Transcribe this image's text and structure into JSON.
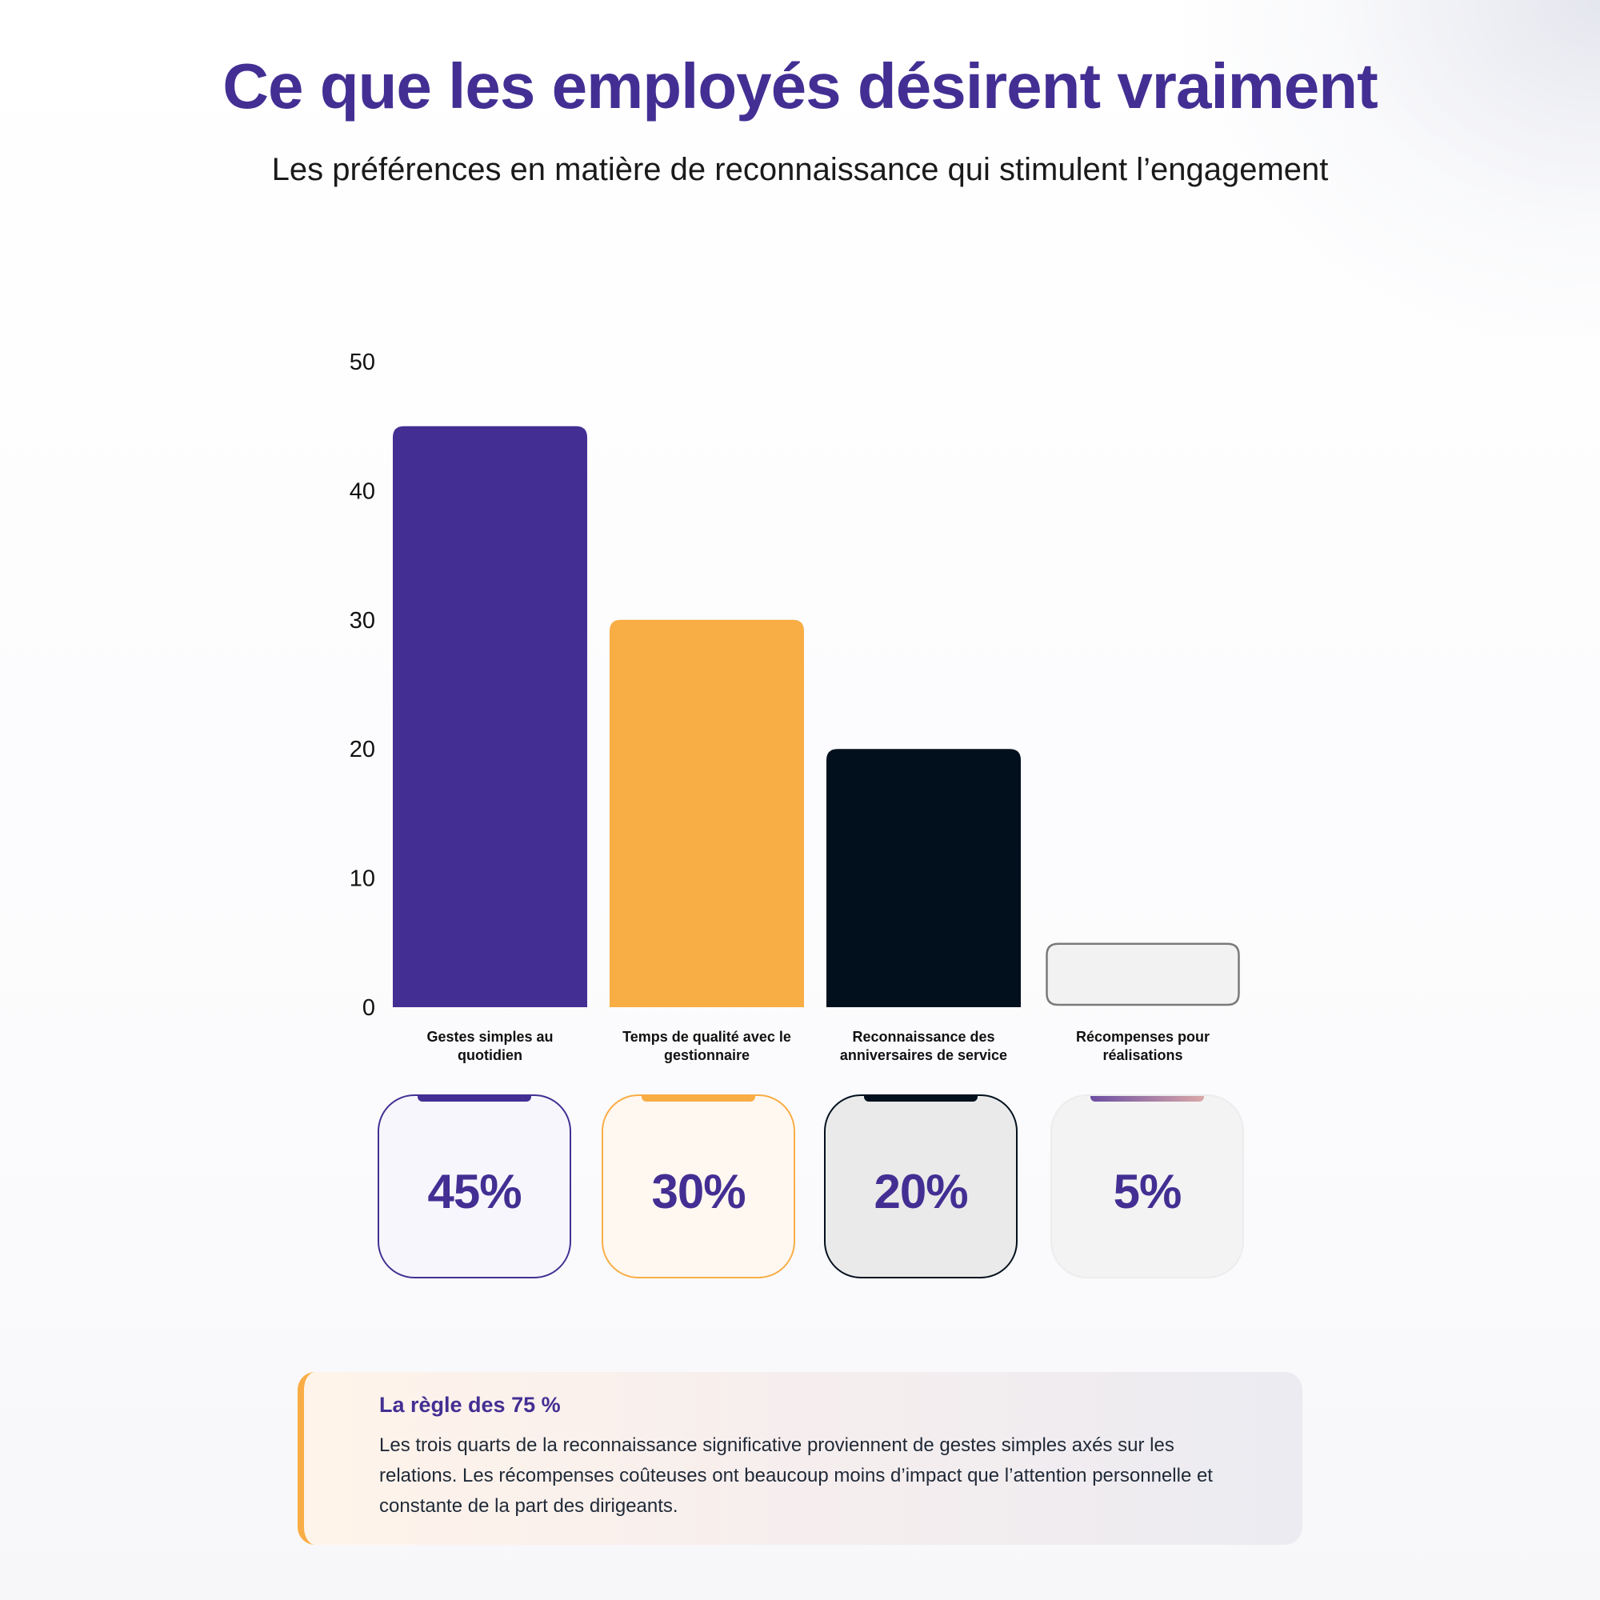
{
  "header": {
    "title": "Ce que les employés désirent vraiment",
    "subtitle": "Les préférences en matière de reconnaissance qui stimulent l’engagement"
  },
  "chart_data": {
    "type": "bar",
    "title": "",
    "xlabel": "",
    "ylabel": "",
    "ylim": [
      0,
      50
    ],
    "yticks": [
      0,
      10,
      20,
      30,
      40,
      50
    ],
    "grid": false,
    "categories": [
      [
        "Gestes simples au",
        "quotidien"
      ],
      [
        "Temps de qualité avec le",
        "gestionnaire"
      ],
      [
        "Reconnaissance des",
        "anniversaires de service"
      ],
      [
        "Récompenses pour",
        "réalisations"
      ]
    ],
    "values": [
      45,
      30,
      20,
      5
    ],
    "colors": [
      "#432f93",
      "#f9ad45",
      "#02101e",
      "#f2f2f2"
    ],
    "outline_colors": [
      "",
      "",
      "",
      "#7a7a7a"
    ]
  },
  "cards": [
    {
      "label": "45%",
      "accent": "#432f93",
      "border": "#432f93",
      "bg": "#f7f6fc"
    },
    {
      "label": "30%",
      "accent": "#f9ad45",
      "border": "#f9ad45",
      "bg": "#fff8f1"
    },
    {
      "label": "20%",
      "accent": "#02101e",
      "border": "#02101e",
      "bg": "#eaeaea"
    },
    {
      "label": "5%",
      "accent": "linear-gradient(90deg, #6d4fa3, #d9a8a8)",
      "border": "#ececec",
      "bg": "#f3f3f3"
    }
  ],
  "callout": {
    "title": "La règle des 75 %",
    "body": "Les trois quarts de la reconnaissance significative proviennent de gestes simples axés sur les relations. Les récompenses coûteuses ont beaucoup moins d’impact que l’attention personnelle et constante de la part des dirigeants.",
    "accent": "#f9ad45"
  }
}
